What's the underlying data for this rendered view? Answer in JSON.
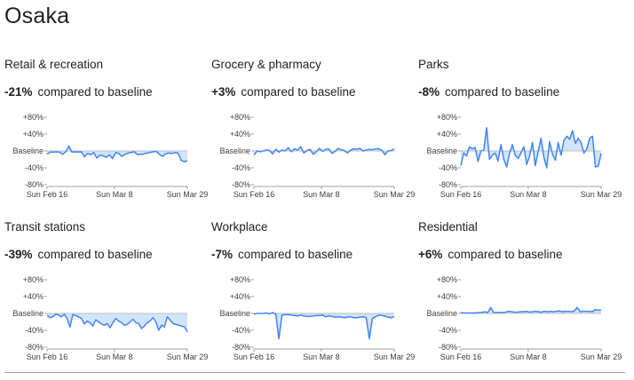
{
  "page": {
    "title": "Osaka",
    "compared_label": "compared to baseline"
  },
  "colors": {
    "line": "#4285f4",
    "fill": "#d2e3fc",
    "baseline": "#bdc1c6",
    "tick": "#9aa0a6"
  },
  "chart_data": [
    {
      "type": "line",
      "title": "Retail & recreation",
      "change": "-21%",
      "yticks": [
        "+80%",
        "+40%",
        "Baseline",
        "-40%",
        "-80%"
      ],
      "ylim": [
        -80,
        80
      ],
      "xticks": [
        "Sun Feb 16",
        "Sun Mar 8",
        "Sun Mar 29"
      ],
      "values": [
        -8,
        -3,
        -3,
        -2,
        -3,
        -8,
        -2,
        12,
        -3,
        -2,
        -3,
        -2,
        -14,
        -6,
        -9,
        -4,
        -17,
        -10,
        -12,
        -15,
        -9,
        -18,
        -4,
        -6,
        -13,
        -8,
        -5,
        -4,
        -2,
        -9,
        -8,
        -7,
        -5,
        -4,
        -2,
        -1,
        -8,
        -13,
        -7,
        -5,
        -6,
        -4,
        -5,
        -22,
        -26,
        -23
      ]
    },
    {
      "type": "line",
      "title": "Grocery & pharmacy",
      "change": "+3%",
      "yticks": [
        "+80%",
        "+40%",
        "Baseline",
        "-40%",
        "-80%"
      ],
      "ylim": [
        -80,
        80
      ],
      "xticks": [
        "Sun Feb 16",
        "Sun Mar 8",
        "Sun Mar 29"
      ],
      "values": [
        -10,
        0,
        -2,
        0,
        2,
        1,
        -7,
        4,
        -3,
        2,
        0,
        8,
        -2,
        5,
        2,
        10,
        -5,
        1,
        4,
        -8,
        -2,
        6,
        -1,
        4,
        5,
        -6,
        -1,
        6,
        3,
        1,
        -5,
        2,
        5,
        4,
        6,
        0,
        2,
        4,
        3,
        5,
        5,
        2,
        -9,
        0,
        1,
        5
      ]
    },
    {
      "type": "line",
      "title": "Parks",
      "change": "-8%",
      "yticks": [
        "+80%",
        "+40%",
        "Baseline",
        "-40%",
        "-80%"
      ],
      "ylim": [
        -80,
        80
      ],
      "xticks": [
        "Sun Feb 16",
        "Sun Mar 8",
        "Sun Mar 29"
      ],
      "values": [
        -35,
        -5,
        -12,
        10,
        5,
        8,
        -25,
        0,
        2,
        55,
        -20,
        -10,
        -5,
        -24,
        15,
        -20,
        -38,
        -6,
        15,
        -10,
        -18,
        -5,
        10,
        -32,
        -12,
        20,
        -35,
        -2,
        30,
        -15,
        -40,
        22,
        -8,
        -22,
        20,
        -10,
        25,
        35,
        28,
        48,
        18,
        30,
        20,
        -5,
        5,
        30,
        35,
        -38,
        -36,
        -6
      ]
    },
    {
      "type": "line",
      "title": "Transit stations",
      "change": "-39%",
      "yticks": [
        "+80%",
        "+40%",
        "Baseline",
        "-40%",
        "-80%"
      ],
      "ylim": [
        -80,
        80
      ],
      "xticks": [
        "Sun Feb 16",
        "Sun Mar 8",
        "Sun Mar 29"
      ],
      "values": [
        -5,
        -10,
        -8,
        -2,
        -4,
        -8,
        -2,
        -12,
        -32,
        -3,
        -5,
        -8,
        -12,
        -25,
        -18,
        -22,
        -30,
        -15,
        -20,
        -25,
        -28,
        -24,
        -34,
        -22,
        -12,
        -18,
        -22,
        -28,
        -26,
        -20,
        -14,
        -22,
        -24,
        -36,
        -30,
        -22,
        -18,
        -10,
        -20,
        -40,
        -28,
        -32,
        -8,
        -16,
        -24,
        -26,
        -28,
        -30,
        -32,
        -44
      ]
    },
    {
      "type": "line",
      "title": "Workplace",
      "change": "-7%",
      "yticks": [
        "+80%",
        "+40%",
        "Baseline",
        "-40%",
        "-80%"
      ],
      "ylim": [
        -80,
        80
      ],
      "xticks": [
        "Sun Feb 16",
        "Sun Mar 8",
        "Sun Mar 29"
      ],
      "values": [
        -2,
        0,
        0,
        0,
        1,
        -1,
        2,
        -2,
        -60,
        -4,
        -3,
        -3,
        -4,
        -5,
        -6,
        -4,
        -6,
        -7,
        -7,
        -6,
        -5,
        -5,
        -4,
        -8,
        -6,
        -7,
        -9,
        -8,
        -9,
        -10,
        -9,
        -8,
        -10,
        -10,
        -9,
        -8,
        -10,
        -60,
        -12,
        -8,
        -4,
        -5,
        -6,
        -9,
        -10,
        -8
      ]
    },
    {
      "type": "line",
      "title": "Residential",
      "change": "+6%",
      "yticks": [
        "+80%",
        "+40%",
        "Baseline",
        "-40%",
        "-80%"
      ],
      "ylim": [
        -80,
        80
      ],
      "xticks": [
        "Sun Feb 16",
        "Sun Mar 8",
        "Sun Mar 29"
      ],
      "values": [
        2,
        1,
        1,
        1,
        1,
        1,
        2,
        2,
        4,
        2,
        14,
        2,
        2,
        2,
        2,
        3,
        5,
        4,
        3,
        3,
        4,
        4,
        5,
        3,
        4,
        5,
        4,
        3,
        5,
        4,
        5,
        4,
        5,
        6,
        4,
        5,
        5,
        4,
        6,
        14,
        4,
        5,
        5,
        5,
        4,
        9,
        8,
        8
      ]
    }
  ]
}
